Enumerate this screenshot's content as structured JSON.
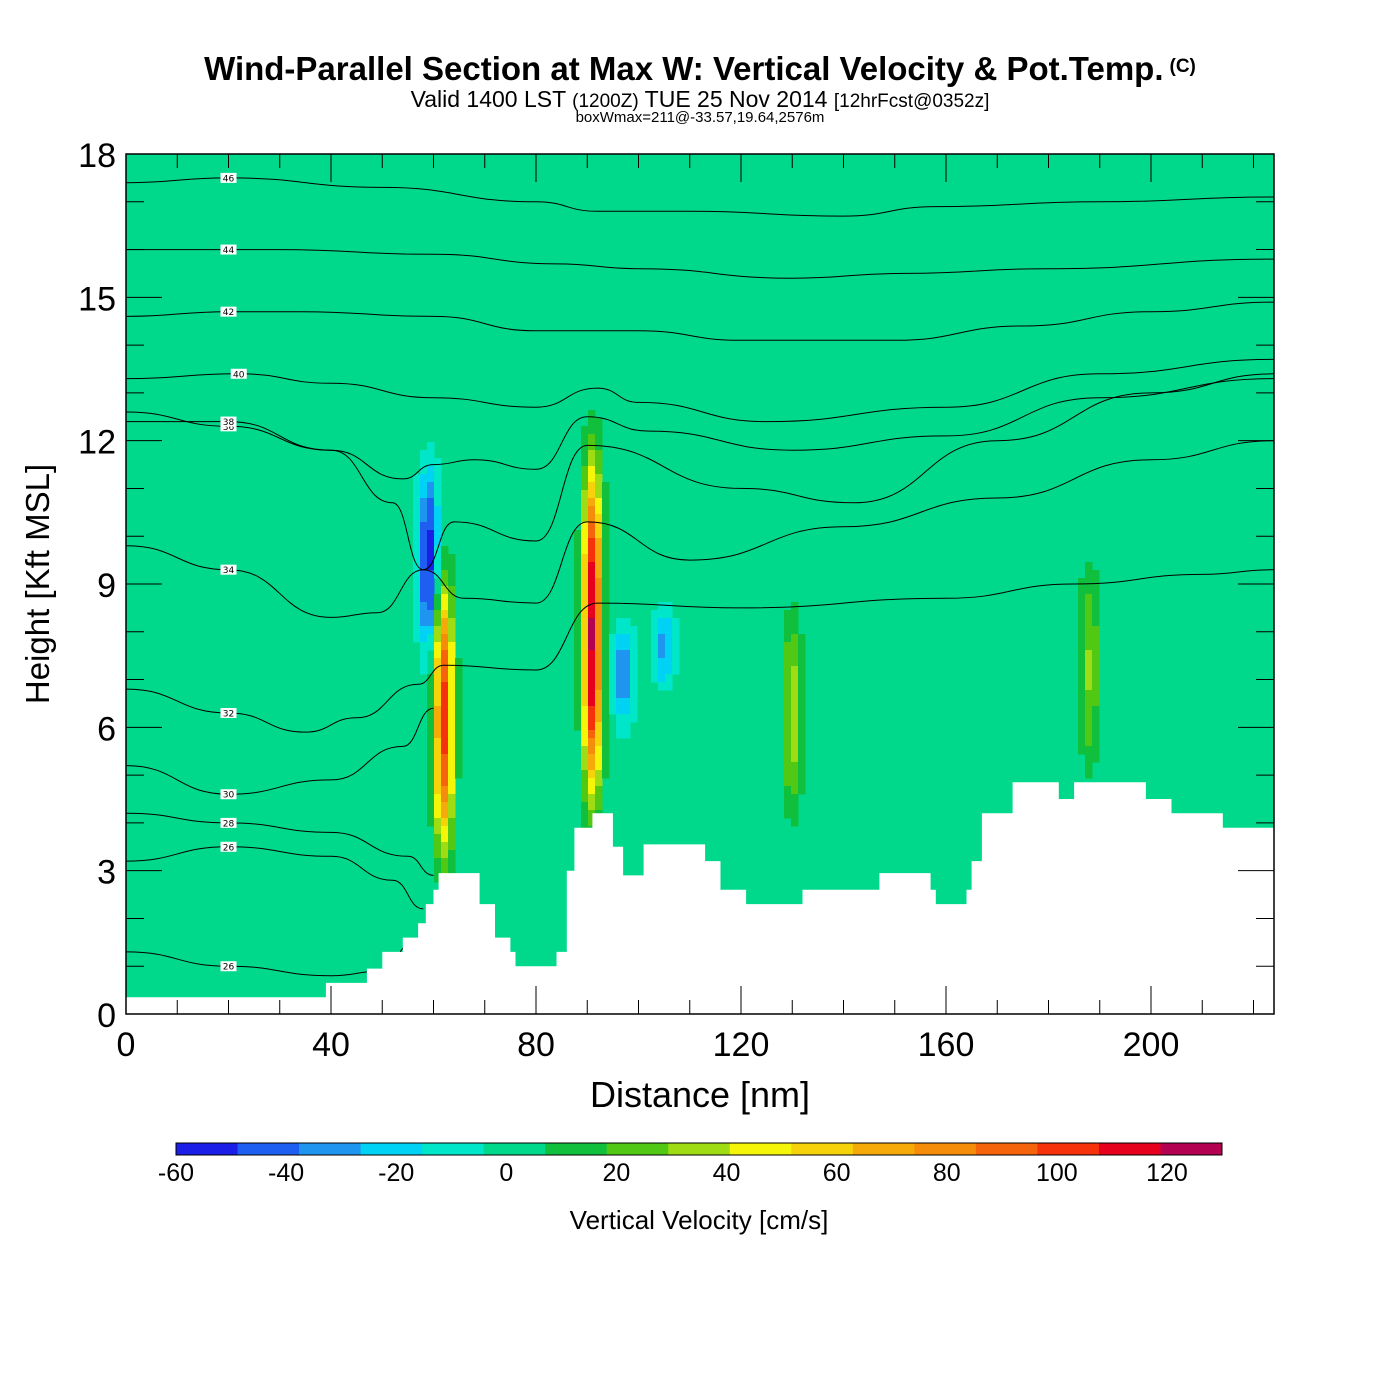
{
  "header": {
    "title": "Wind-Parallel Section at Max W: Vertical Velocity & Pot.Temp.",
    "copyright_mark": "(C)",
    "valid_prefix": "Valid 1400 LST",
    "valid_z": "(1200Z)",
    "valid_date": "TUE 25 Nov 2014",
    "forecast_info": "[12hrFcst@0352z]",
    "box_info": "boxWmax=211@-33.57,19.64,2576m"
  },
  "chart_data": {
    "type": "contour",
    "xlabel": "Distance [nm]",
    "ylabel": "Height [Kft MSL]",
    "xlim": [
      0,
      224
    ],
    "ylim": [
      0,
      18
    ],
    "x_ticks": [
      0,
      40,
      80,
      120,
      160,
      200
    ],
    "y_ticks": [
      0,
      3,
      6,
      9,
      12,
      15,
      18
    ],
    "colorbar": {
      "title": "Vertical Velocity [cm/s]",
      "ticks": [
        -60,
        -40,
        -20,
        0,
        20,
        40,
        60,
        80,
        100,
        120
      ],
      "range": [
        -60,
        130
      ],
      "colors": [
        "#1a1ee6",
        "#1e5ef0",
        "#1e96f0",
        "#00d2f5",
        "#00e6c8",
        "#00d98c",
        "#10c03c",
        "#50c814",
        "#a0dc14",
        "#f5f50a",
        "#f5d20a",
        "#f5aa0a",
        "#f58c0a",
        "#f5640a",
        "#f5320a",
        "#e6001e",
        "#b40050"
      ]
    },
    "background_w": 0,
    "updraft_cores": [
      {
        "x": 62,
        "z_bottom": 3.2,
        "z_top": 9.2,
        "w_max": 100
      },
      {
        "x": 91,
        "z_bottom": 4.3,
        "z_top": 11.7,
        "w_max": 120
      },
      {
        "x": 130,
        "z_bottom": 4.0,
        "z_top": 8.5,
        "w_max": 35
      },
      {
        "x": 188,
        "z_bottom": 5.0,
        "z_top": 9.5,
        "w_max": 30
      }
    ],
    "downdraft_cores": [
      {
        "x": 59,
        "z_bottom": 7.5,
        "z_top": 11.5,
        "w_min": -55
      },
      {
        "x": 97,
        "z_bottom": 6.0,
        "z_top": 8.2,
        "w_min": -35
      },
      {
        "x": 105,
        "z_bottom": 6.8,
        "z_top": 8.5,
        "w_min": -30
      }
    ],
    "terrain_profile": {
      "x": [
        0,
        38.5,
        39,
        47,
        50,
        54,
        57,
        58.5,
        60,
        61,
        66,
        69,
        72,
        75,
        76,
        82,
        84,
        86,
        87.5,
        91,
        95,
        97,
        101,
        103,
        113,
        116,
        118,
        121,
        132,
        147,
        157,
        158,
        164,
        165,
        167,
        172,
        173,
        180,
        182,
        185,
        198,
        199,
        204,
        213,
        214,
        224
      ],
      "z": [
        0.35,
        0.35,
        0.65,
        0.95,
        1.3,
        1.6,
        1.9,
        2.3,
        2.6,
        2.95,
        2.95,
        2.3,
        1.6,
        1.3,
        1.0,
        1.0,
        1.3,
        3.0,
        3.9,
        4.2,
        3.5,
        2.9,
        3.55,
        3.55,
        3.2,
        2.6,
        2.6,
        2.3,
        2.6,
        2.95,
        2.6,
        2.3,
        2.6,
        3.2,
        4.2,
        4.2,
        4.85,
        4.85,
        4.5,
        4.85,
        4.85,
        4.5,
        4.2,
        4.2,
        3.9,
        3.9
      ]
    },
    "theta_contours": [
      {
        "value": 26,
        "label": "26",
        "x": [
          0,
          20,
          40,
          50,
          56
        ],
        "z": [
          1.3,
          1.0,
          0.8,
          0.9,
          1.5
        ]
      },
      {
        "value": 26,
        "label": "26",
        "x": [
          0,
          20,
          40,
          52,
          58
        ],
        "z": [
          3.2,
          3.5,
          3.3,
          2.8,
          2.2
        ]
      },
      {
        "value": 28,
        "label": "28",
        "x": [
          0,
          20,
          40,
          55,
          60
        ],
        "z": [
          4.2,
          4.0,
          3.8,
          3.3,
          2.9
        ]
      },
      {
        "value": 30,
        "label": "30",
        "x": [
          0,
          20,
          40,
          54,
          60
        ],
        "z": [
          5.2,
          4.6,
          4.9,
          5.6,
          6.4
        ]
      },
      {
        "value": 32,
        "label": "32",
        "x": [
          0,
          20,
          35,
          45,
          57,
          62,
          80,
          92,
          120,
          160,
          185,
          210,
          224
        ],
        "z": [
          6.8,
          6.3,
          5.9,
          6.2,
          6.9,
          7.3,
          7.2,
          8.6,
          8.5,
          8.7,
          9.0,
          9.2,
          9.3
        ]
      },
      {
        "value": 34,
        "label": "34",
        "x": [
          0,
          20,
          40,
          49,
          58,
          66,
          80,
          90,
          110,
          140,
          170,
          200,
          224
        ],
        "z": [
          9.8,
          9.3,
          8.3,
          8.4,
          9.3,
          8.7,
          8.6,
          10.3,
          9.5,
          10.2,
          10.8,
          11.6,
          12.0
        ]
      },
      {
        "value": 36,
        "label": "36",
        "x": [
          0,
          20,
          40,
          52,
          58,
          64,
          80,
          90,
          120,
          142,
          170,
          200,
          224
        ],
        "z": [
          12.6,
          12.3,
          11.8,
          10.7,
          9.3,
          10.3,
          9.9,
          11.9,
          11.0,
          10.7,
          12.0,
          13.0,
          13.4
        ]
      },
      {
        "value": 38,
        "label": "38",
        "x": [
          0,
          20,
          40,
          54,
          60,
          68,
          80,
          90,
          102,
          130,
          160,
          190,
          224
        ],
        "z": [
          12.4,
          12.4,
          11.8,
          11.2,
          11.5,
          11.6,
          11.4,
          12.5,
          12.2,
          11.8,
          12.1,
          12.9,
          13.3
        ]
      },
      {
        "value": 40,
        "label": "40",
        "x": [
          0,
          22,
          40,
          60,
          80,
          92,
          100,
          125,
          160,
          190,
          224
        ],
        "z": [
          13.3,
          13.4,
          13.2,
          12.9,
          12.7,
          13.1,
          12.8,
          12.4,
          12.7,
          13.4,
          13.7
        ]
      },
      {
        "value": 42,
        "label": "42",
        "x": [
          0,
          20,
          34,
          60,
          80,
          93,
          100,
          120,
          150,
          175,
          200,
          224
        ],
        "z": [
          14.6,
          14.7,
          14.7,
          14.6,
          14.3,
          14.3,
          14.3,
          14.1,
          14.1,
          14.4,
          14.7,
          14.9
        ]
      },
      {
        "value": 44,
        "label": "44",
        "x": [
          0,
          20,
          30,
          60,
          84,
          100,
          130,
          152,
          180,
          224
        ],
        "z": [
          16.0,
          16.0,
          16.0,
          15.9,
          15.7,
          15.6,
          15.4,
          15.5,
          15.6,
          15.8
        ]
      },
      {
        "value": 46,
        "label": "46",
        "x": [
          0,
          20,
          50,
          80,
          92,
          110,
          140,
          158,
          190,
          224
        ],
        "z": [
          17.4,
          17.5,
          17.3,
          17.0,
          16.8,
          16.8,
          16.7,
          16.9,
          17.0,
          17.1
        ]
      }
    ]
  }
}
